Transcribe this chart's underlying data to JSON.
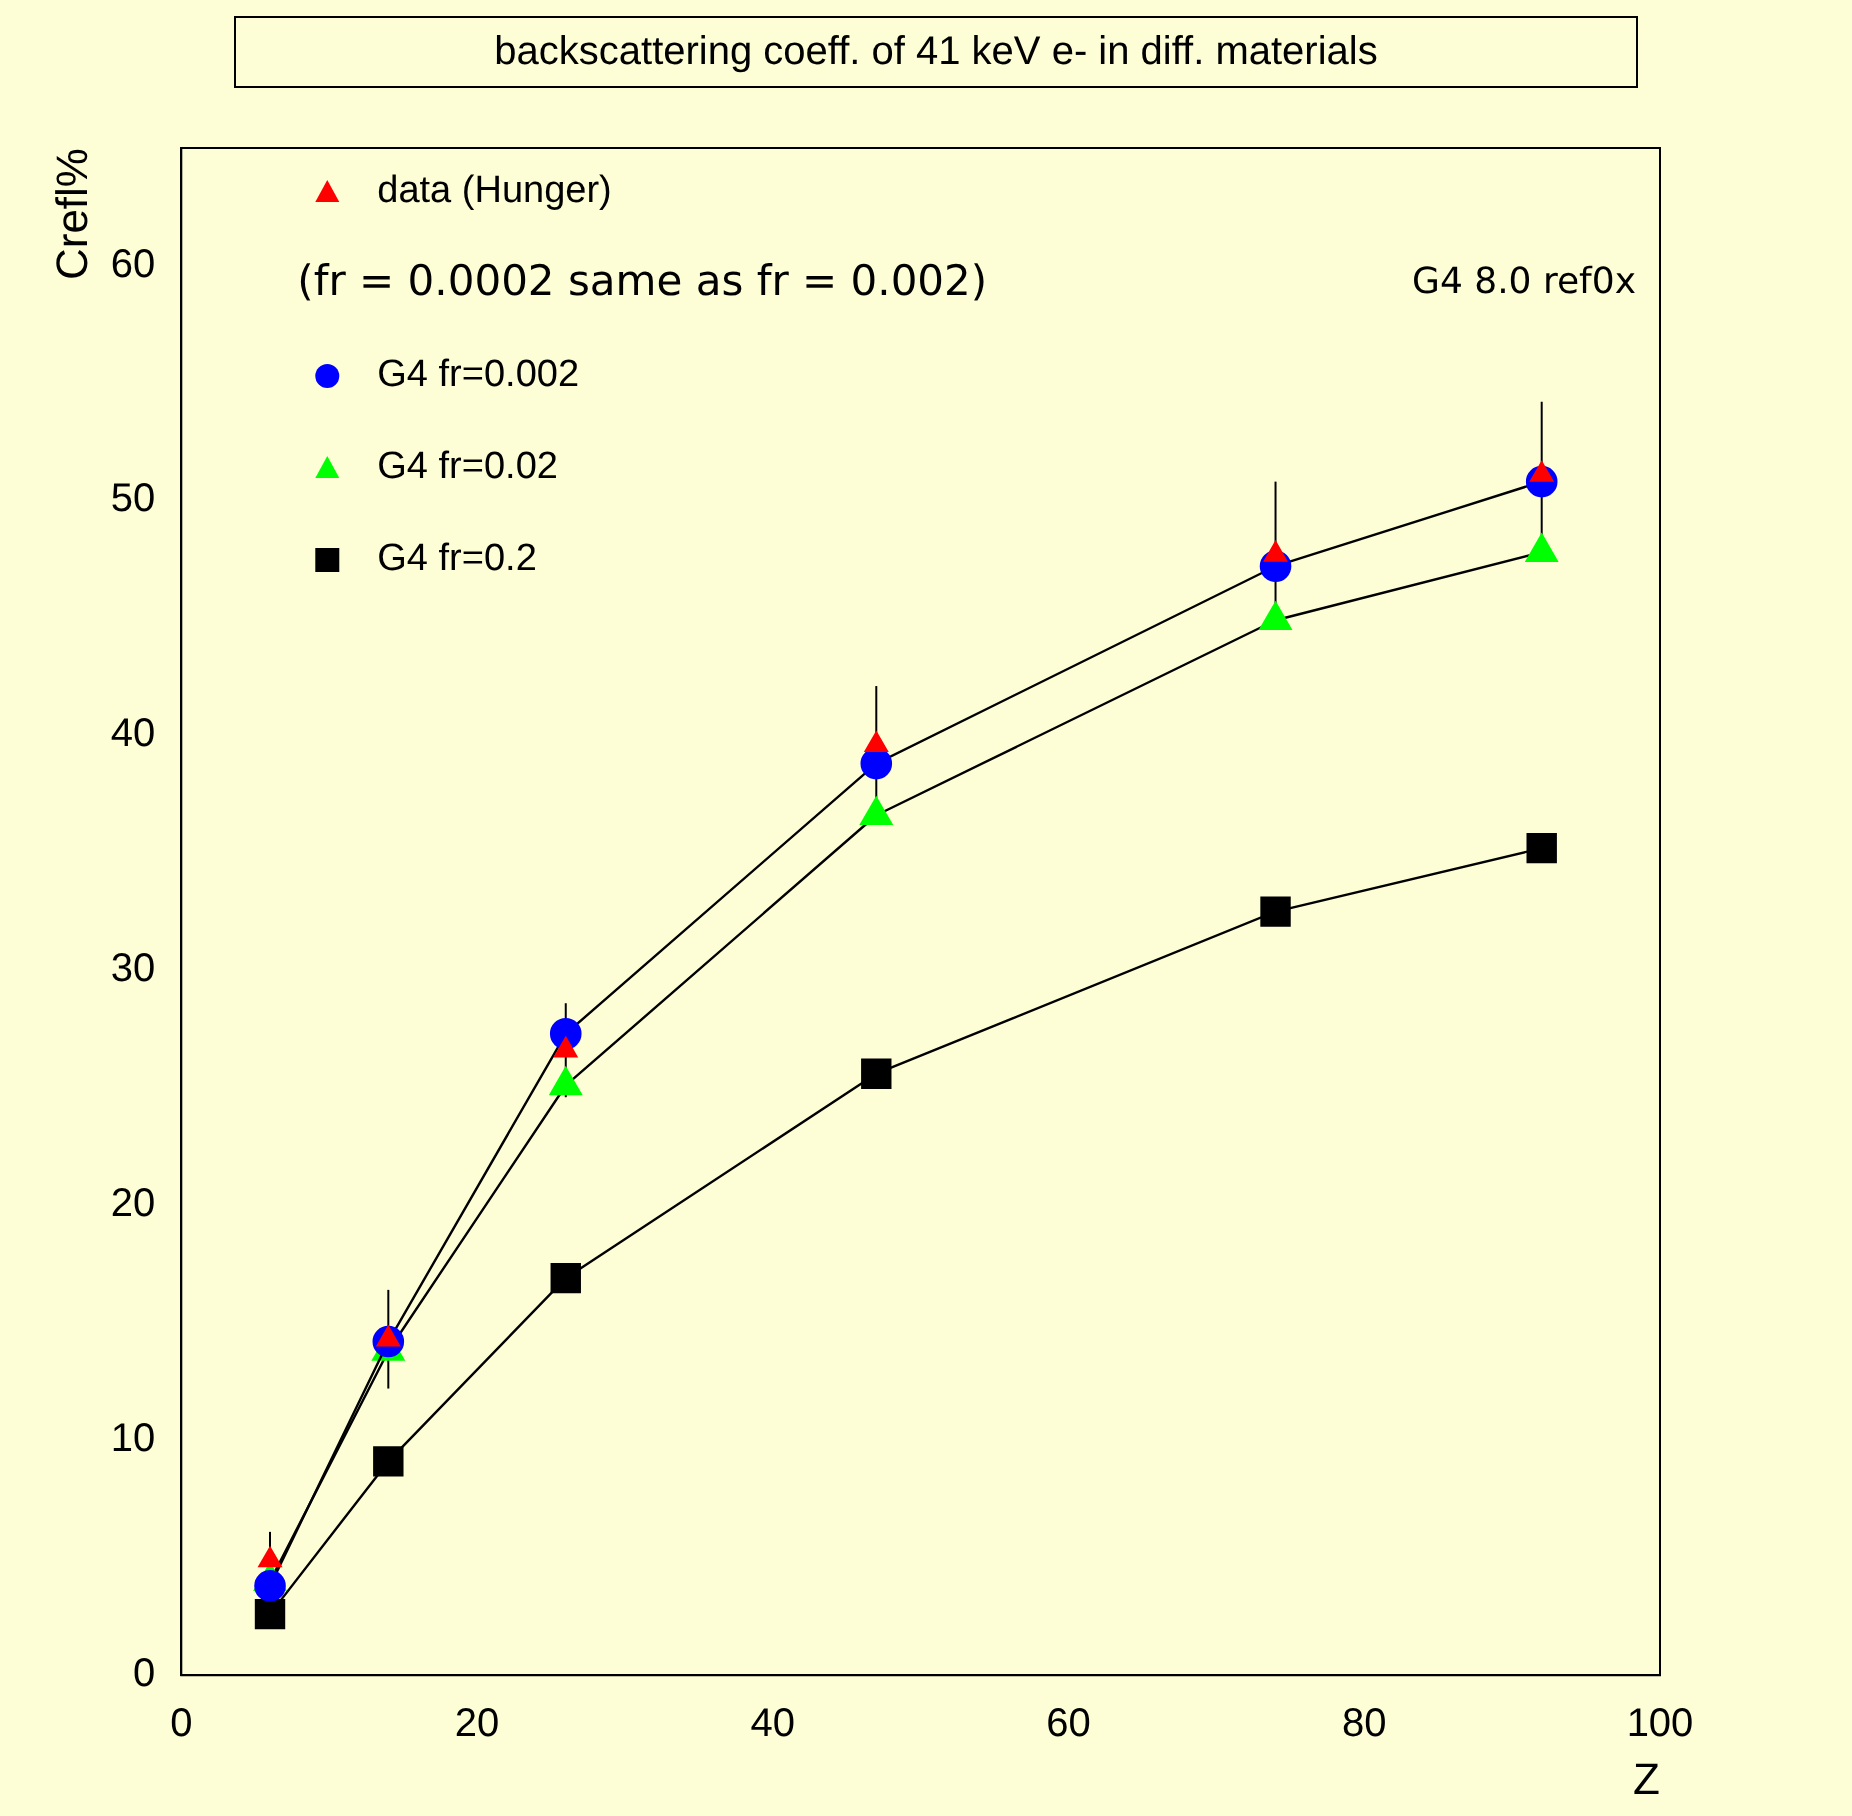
{
  "chart_data": {
    "type": "line",
    "title": "backscattering coeff. of 41 keV e- in diff. materials",
    "xlabel": "Z",
    "ylabel": "Crefl%",
    "x": [
      6,
      14,
      26,
      47,
      74,
      92
    ],
    "series": [
      {
        "name": "data (Hunger)",
        "type": "scatter",
        "color": "#ff0000",
        "marker": "triangle",
        "values": [
          4.9,
          14.3,
          26.6,
          39.6,
          47.7,
          51.1
        ],
        "errors": [
          1.2,
          2.1,
          2.0,
          2.5,
          3.1,
          3.1
        ]
      },
      {
        "name": "G4 fr=0.002",
        "color": "#0000ff",
        "marker": "circle",
        "values": [
          3.8,
          14.2,
          27.3,
          38.8,
          47.2,
          50.8
        ]
      },
      {
        "name": "G4 fr=0.02",
        "color": "#00ff00",
        "marker": "triangle",
        "values": [
          4.0,
          13.8,
          25.1,
          36.6,
          44.9,
          47.8
        ]
      },
      {
        "name": "G4 fr=0.2",
        "color": "#000000",
        "marker": "square",
        "values": [
          2.6,
          9.1,
          16.9,
          25.6,
          32.5,
          35.2
        ]
      }
    ],
    "annotations": [
      "(fr = 0.0002 same as fr = 0.002)",
      "G4 8.0 ref0x"
    ],
    "xlim": [
      0,
      100
    ],
    "xticks": [
      0,
      20,
      40,
      60,
      80,
      100
    ],
    "ylim": [
      0,
      65
    ],
    "yticks": [
      0,
      10,
      20,
      30,
      40,
      50,
      60
    ],
    "grid": false,
    "legend": "top left"
  }
}
